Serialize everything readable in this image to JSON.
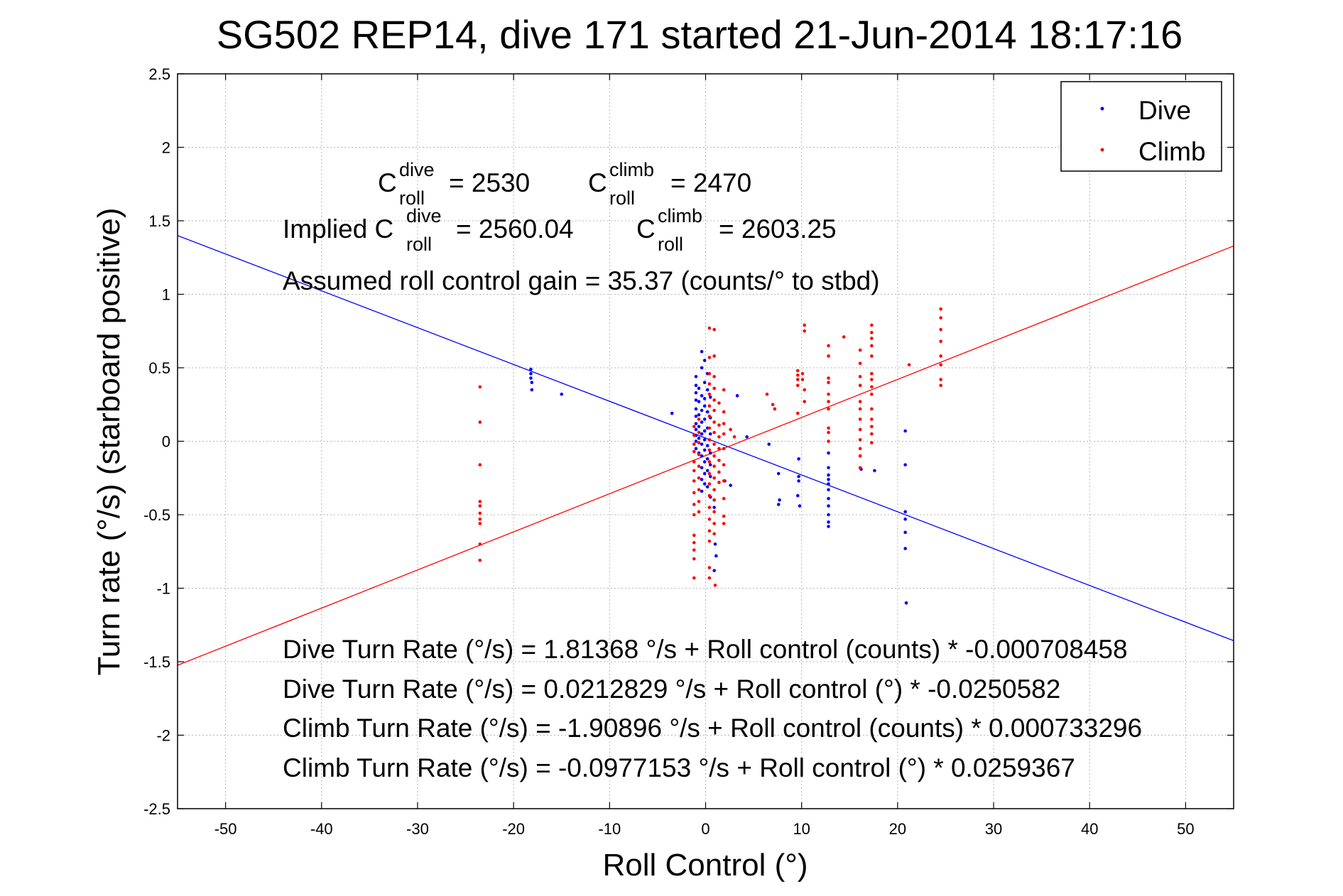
{
  "chart_data": {
    "type": "scatter",
    "title": "SG502 REP14, dive 171 started 21-Jun-2014 18:17:16",
    "xlabel": "Roll Control (°)",
    "ylabel": "Turn rate (°/s) (starboard positive)",
    "xlim": [
      -55,
      55
    ],
    "ylim": [
      -2.5,
      2.5
    ],
    "xticks": [
      -50,
      -40,
      -30,
      -20,
      -10,
      0,
      10,
      20,
      30,
      40,
      50
    ],
    "yticks": [
      -2.5,
      -2,
      -1.5,
      -1,
      -0.5,
      0,
      0.5,
      1,
      1.5,
      2,
      2.5
    ],
    "xtick_labels": [
      "-50",
      "-40",
      "-30",
      "-20",
      "-10",
      "0",
      "10",
      "20",
      "30",
      "40",
      "50"
    ],
    "ytick_labels": [
      "-2.5",
      "-2",
      "-1.5",
      "-1",
      "-0.5",
      "0",
      "0.5",
      "1",
      "1.5",
      "2",
      "2.5"
    ],
    "grid": true,
    "legend": {
      "placement": "top-right",
      "entries": [
        "Dive",
        "Climb"
      ]
    },
    "series": [
      {
        "name": "Dive",
        "color": "#0000ff",
        "style": "points",
        "points": [
          [
            -18.2,
            0.49
          ],
          [
            -18.2,
            0.46
          ],
          [
            -18.2,
            0.43
          ],
          [
            -18.1,
            0.4
          ],
          [
            -18.1,
            0.35
          ],
          [
            -15,
            0.32
          ],
          [
            -3.5,
            0.19
          ],
          [
            -1.0,
            0.44
          ],
          [
            -1.0,
            0.38
          ],
          [
            -1.0,
            0.33
          ],
          [
            -1.0,
            0.28
          ],
          [
            -1.0,
            0.22
          ],
          [
            -1.0,
            0.17
          ],
          [
            -1.0,
            0.12
          ],
          [
            -1.0,
            0.08
          ],
          [
            -1.0,
            0.04
          ],
          [
            -1.0,
            0.0
          ],
          [
            -1.0,
            -0.05
          ],
          [
            -0.7,
            0.36
          ],
          [
            -0.7,
            0.27
          ],
          [
            -0.7,
            0.18
          ],
          [
            -0.7,
            0.1
          ],
          [
            -0.7,
            0.02
          ],
          [
            -0.7,
            -0.08
          ],
          [
            -0.4,
            0.61
          ],
          [
            -0.4,
            0.5
          ],
          [
            -0.4,
            0.31
          ],
          [
            -0.4,
            0.21
          ],
          [
            -0.4,
            0.13
          ],
          [
            -0.4,
            0.05
          ],
          [
            -0.4,
            -0.02
          ],
          [
            -0.4,
            -0.1
          ],
          [
            -0.4,
            -0.18
          ],
          [
            -0.4,
            -0.26
          ],
          [
            -0.4,
            -0.34
          ],
          [
            -0.1,
            0.55
          ],
          [
            -0.1,
            0.4
          ],
          [
            -0.1,
            0.29
          ],
          [
            -0.1,
            0.24
          ],
          [
            -0.1,
            0.15
          ],
          [
            -0.1,
            0.07
          ],
          [
            -0.1,
            0.01
          ],
          [
            -0.1,
            -0.06
          ],
          [
            -0.1,
            -0.14
          ],
          [
            -0.1,
            -0.22
          ],
          [
            -0.1,
            -0.29
          ],
          [
            0.2,
            0.46
          ],
          [
            0.2,
            0.35
          ],
          [
            0.2,
            0.2
          ],
          [
            0.2,
            0.09
          ],
          [
            0.2,
            -0.03
          ],
          [
            0.2,
            -0.12
          ],
          [
            0.2,
            -0.2
          ],
          [
            0.2,
            -0.31
          ],
          [
            0.5,
            0.3
          ],
          [
            0.5,
            0.16
          ],
          [
            0.5,
            0.05
          ],
          [
            0.5,
            -0.08
          ],
          [
            0.5,
            -0.16
          ],
          [
            0.5,
            -0.24
          ],
          [
            0.5,
            -0.38
          ],
          [
            0.9,
            -0.4
          ],
          [
            0.9,
            -0.45
          ],
          [
            1.0,
            -0.7
          ],
          [
            1.1,
            -0.78
          ],
          [
            0.9,
            -0.88
          ],
          [
            2.0,
            -0.27
          ],
          [
            2.6,
            -0.3
          ],
          [
            3.3,
            0.31
          ],
          [
            4.3,
            0.03
          ],
          [
            6.6,
            -0.02
          ],
          [
            7.6,
            -0.22
          ],
          [
            7.7,
            -0.4
          ],
          [
            7.6,
            -0.43
          ],
          [
            9.7,
            -0.12
          ],
          [
            9.7,
            -0.24
          ],
          [
            9.7,
            -0.27
          ],
          [
            9.6,
            -0.37
          ],
          [
            9.8,
            -0.44
          ],
          [
            12.8,
            -0.08
          ],
          [
            12.8,
            -0.18
          ],
          [
            12.8,
            -0.23
          ],
          [
            12.8,
            -0.26
          ],
          [
            12.8,
            -0.29
          ],
          [
            12.8,
            -0.33
          ],
          [
            12.8,
            -0.39
          ],
          [
            12.8,
            -0.44
          ],
          [
            12.8,
            -0.5
          ],
          [
            12.8,
            -0.55
          ],
          [
            12.8,
            -0.58
          ],
          [
            16.2,
            -0.19
          ],
          [
            17.6,
            -0.2
          ],
          [
            20.8,
            0.07
          ],
          [
            20.8,
            -0.16
          ],
          [
            20.8,
            -0.48
          ],
          [
            20.8,
            -0.53
          ],
          [
            20.8,
            -0.62
          ],
          [
            20.8,
            -0.73
          ],
          [
            20.9,
            -1.1
          ]
        ],
        "fit_line": {
          "intercept": 0.0212829,
          "slope": -0.0250582
        }
      },
      {
        "name": "Climb",
        "color": "#ff0000",
        "style": "points",
        "points": [
          [
            -23.5,
            0.37
          ],
          [
            -23.5,
            0.13
          ],
          [
            -23.5,
            -0.16
          ],
          [
            -23.5,
            -0.41
          ],
          [
            -23.5,
            -0.44
          ],
          [
            -23.5,
            -0.49
          ],
          [
            -23.5,
            -0.53
          ],
          [
            -23.5,
            -0.56
          ],
          [
            -23.5,
            -0.7
          ],
          [
            -23.5,
            -0.81
          ],
          [
            -1.2,
            0.1
          ],
          [
            -1.2,
            0.04
          ],
          [
            -1.2,
            -0.02
          ],
          [
            -1.2,
            -0.07
          ],
          [
            -1.2,
            -0.14
          ],
          [
            -1.2,
            -0.2
          ],
          [
            -1.2,
            -0.27
          ],
          [
            -1.2,
            -0.35
          ],
          [
            -1.2,
            -0.43
          ],
          [
            -1.2,
            -0.5
          ],
          [
            -1.2,
            -0.64
          ],
          [
            -1.2,
            -0.69
          ],
          [
            -1.2,
            -0.74
          ],
          [
            -1.2,
            -0.8
          ],
          [
            -1.2,
            -0.93
          ],
          [
            -0.7,
            0.15
          ],
          [
            -0.7,
            0.06
          ],
          [
            -0.7,
            -0.01
          ],
          [
            -0.7,
            -0.09
          ],
          [
            -0.7,
            -0.17
          ],
          [
            -0.7,
            -0.25
          ],
          [
            -0.7,
            -0.33
          ],
          [
            -0.7,
            -0.41
          ],
          [
            -0.7,
            -0.48
          ],
          [
            0.4,
            0.77
          ],
          [
            0.4,
            0.57
          ],
          [
            0.4,
            0.46
          ],
          [
            0.4,
            0.39
          ],
          [
            0.4,
            0.32
          ],
          [
            0.4,
            0.24
          ],
          [
            0.4,
            0.17
          ],
          [
            0.4,
            0.09
          ],
          [
            0.4,
            0.01
          ],
          [
            0.4,
            -0.06
          ],
          [
            0.4,
            -0.14
          ],
          [
            0.4,
            -0.22
          ],
          [
            0.4,
            -0.29
          ],
          [
            0.4,
            -0.37
          ],
          [
            0.4,
            -0.45
          ],
          [
            0.4,
            -0.53
          ],
          [
            0.4,
            -0.61
          ],
          [
            0.4,
            -0.68
          ],
          [
            0.4,
            -0.86
          ],
          [
            0.4,
            -0.93
          ],
          [
            0.9,
            0.76
          ],
          [
            0.9,
            0.58
          ],
          [
            0.9,
            0.44
          ],
          [
            0.9,
            0.36
          ],
          [
            0.9,
            0.28
          ],
          [
            0.9,
            0.21
          ],
          [
            0.9,
            0.13
          ],
          [
            0.9,
            0.06
          ],
          [
            0.9,
            -0.02
          ],
          [
            0.9,
            -0.1
          ],
          [
            0.9,
            -0.17
          ],
          [
            0.9,
            -0.25
          ],
          [
            0.9,
            -0.33
          ],
          [
            0.9,
            -0.4
          ],
          [
            0.9,
            -0.48
          ],
          [
            0.9,
            -0.56
          ],
          [
            0.9,
            -0.63
          ],
          [
            1.0,
            -0.98
          ],
          [
            1.4,
            0.26
          ],
          [
            1.4,
            0.11
          ],
          [
            1.4,
            0.03
          ],
          [
            1.4,
            -0.05
          ],
          [
            1.4,
            -0.13
          ],
          [
            1.4,
            -0.21
          ],
          [
            1.4,
            -0.28
          ],
          [
            1.9,
            0.35
          ],
          [
            1.9,
            0.2
          ],
          [
            1.9,
            0.12
          ],
          [
            1.9,
            0.05
          ],
          [
            1.9,
            -0.05
          ],
          [
            1.9,
            -0.16
          ],
          [
            1.9,
            -0.27
          ],
          [
            1.9,
            -0.39
          ],
          [
            1.9,
            -0.51
          ],
          [
            1.9,
            -0.56
          ],
          [
            2.6,
            0.08
          ],
          [
            3.0,
            0.03
          ],
          [
            6.4,
            0.32
          ],
          [
            7.0,
            0.25
          ],
          [
            7.2,
            0.22
          ],
          [
            9.6,
            0.48
          ],
          [
            9.6,
            0.45
          ],
          [
            9.6,
            0.42
          ],
          [
            9.6,
            0.38
          ],
          [
            9.6,
            0.19
          ],
          [
            10.1,
            0.46
          ],
          [
            10.1,
            0.42
          ],
          [
            10.3,
            0.35
          ],
          [
            10.3,
            0.27
          ],
          [
            10.3,
            0.79
          ],
          [
            10.3,
            0.75
          ],
          [
            12.8,
            0.65
          ],
          [
            12.8,
            0.58
          ],
          [
            12.8,
            0.43
          ],
          [
            12.8,
            0.4
          ],
          [
            12.8,
            0.32
          ],
          [
            12.8,
            0.27
          ],
          [
            12.8,
            0.22
          ],
          [
            12.8,
            0.09
          ],
          [
            12.8,
            0.06
          ],
          [
            12.8,
            0.0
          ],
          [
            14.4,
            0.71
          ],
          [
            16.1,
            0.62
          ],
          [
            16.1,
            0.53
          ],
          [
            16.1,
            0.44
          ],
          [
            16.1,
            0.38
          ],
          [
            16.1,
            0.27
          ],
          [
            16.1,
            0.22
          ],
          [
            16.1,
            0.15
          ],
          [
            16.1,
            0.08
          ],
          [
            16.1,
            0.01
          ],
          [
            16.1,
            -0.05
          ],
          [
            16.1,
            -0.1
          ],
          [
            16.1,
            -0.18
          ],
          [
            17.3,
            0.79
          ],
          [
            17.3,
            0.74
          ],
          [
            17.3,
            0.7
          ],
          [
            17.3,
            0.65
          ],
          [
            17.3,
            0.58
          ],
          [
            17.3,
            0.46
          ],
          [
            17.3,
            0.42
          ],
          [
            17.3,
            0.37
          ],
          [
            17.3,
            0.32
          ],
          [
            17.3,
            0.22
          ],
          [
            17.3,
            0.15
          ],
          [
            17.3,
            0.1
          ],
          [
            17.3,
            0.05
          ],
          [
            17.3,
            -0.01
          ],
          [
            21.2,
            0.52
          ],
          [
            24.5,
            0.9
          ],
          [
            24.5,
            0.84
          ],
          [
            24.5,
            0.76
          ],
          [
            24.5,
            0.68
          ],
          [
            24.5,
            0.58
          ],
          [
            24.5,
            0.52
          ],
          [
            24.5,
            0.42
          ],
          [
            24.5,
            0.38
          ]
        ],
        "fit_line": {
          "intercept": -0.0977153,
          "slope": 0.0259367
        }
      }
    ],
    "annotations": {
      "c_roll_dive_label": "C",
      "c_roll_dive_sup": "dive",
      "c_roll_dive_sub": "roll",
      "c_roll_dive_value": "= 2530",
      "c_roll_climb_label": "C",
      "c_roll_climb_sup": "climb",
      "c_roll_climb_sub": "roll",
      "c_roll_climb_value": "= 2470",
      "implied_prefix": "Implied C",
      "implied_dive_sup": "dive",
      "implied_dive_sub": "roll",
      "implied_dive_value": "= 2560.04",
      "implied_climb_label": "C",
      "implied_climb_sup": "climb",
      "implied_climb_sub": "roll",
      "implied_climb_value": "= 2603.25",
      "gain": "Assumed roll control gain = 35.37 (counts/° to stbd)",
      "eq1": "Dive Turn Rate (°/s) = 1.81368 °/s + Roll control (counts) * -0.000708458",
      "eq2": "Dive Turn Rate (°/s) = 0.0212829 °/s + Roll control (°) * -0.0250582",
      "eq3": "Climb Turn Rate (°/s) = -1.90896 °/s + Roll control (counts) * 0.000733296",
      "eq4": "Climb Turn Rate (°/s) = -0.0977153 °/s + Roll control (°) * 0.0259367"
    }
  }
}
